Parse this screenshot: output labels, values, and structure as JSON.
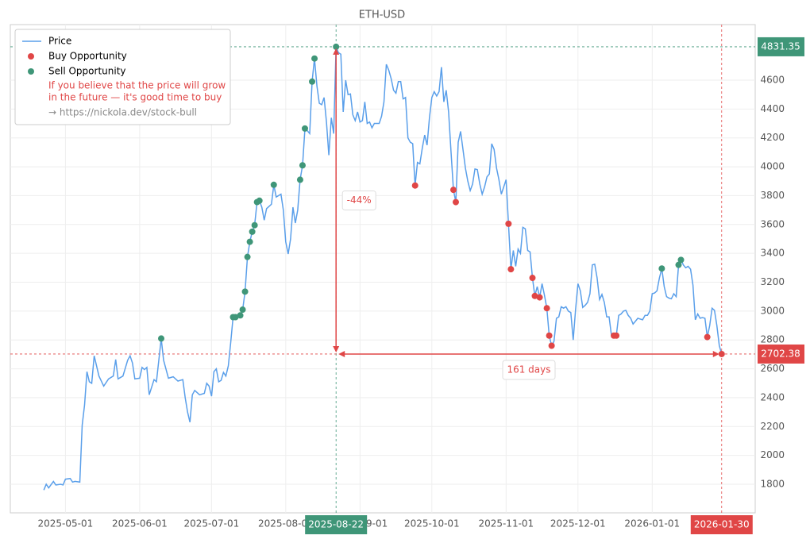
{
  "chart_data": {
    "type": "line",
    "title": "ETH-USD",
    "xlim": [
      "2025-04-08",
      "2026-02-13"
    ],
    "ylim": [
      1602,
      4985
    ],
    "xticks": [
      "2025-05-01",
      "2025-06-01",
      "2025-07-01",
      "2025-08-01",
      "2025-09-01",
      "2025-10-01",
      "2025-11-01",
      "2025-12-01",
      "2026-01-01"
    ],
    "yticks": [
      1800,
      2000,
      2200,
      2400,
      2600,
      2800,
      3000,
      3200,
      3400,
      3600,
      3800,
      4000,
      4200,
      4400,
      4600
    ],
    "grid": true,
    "legend": "upper left",
    "legend_note": [
      "If you believe that the price will grow",
      "in the future — it's good time to buy"
    ],
    "legend_link": "→ https://nickola.dev/stock-bull",
    "max_marker": {
      "x": "2025-08-22",
      "value": 4831.35,
      "color": "#3f9678"
    },
    "last_marker": {
      "x": "2026-01-30",
      "value": 2702.38,
      "color": "#e04646"
    },
    "annotations": {
      "change": "-44%",
      "duration": "161 days"
    },
    "series": [
      {
        "name": "Price",
        "color": "#5a9fea",
        "x": [
          "2025-04-22",
          "2025-04-23",
          "2025-04-24",
          "2025-04-26",
          "2025-04-27",
          "2025-04-29",
          "2025-04-30",
          "2025-05-01",
          "2025-05-03",
          "2025-05-04",
          "2025-05-05",
          "2025-05-07",
          "2025-05-08",
          "2025-05-09",
          "2025-05-10",
          "2025-05-11",
          "2025-05-12",
          "2025-05-13",
          "2025-05-15",
          "2025-05-17",
          "2025-05-19",
          "2025-05-21",
          "2025-05-22",
          "2025-05-23",
          "2025-05-25",
          "2025-05-27",
          "2025-05-28",
          "2025-05-29",
          "2025-05-30",
          "2025-06-01",
          "2025-06-02",
          "2025-06-03",
          "2025-06-04",
          "2025-06-05",
          "2025-06-07",
          "2025-06-08",
          "2025-06-10",
          "2025-06-11",
          "2025-06-13",
          "2025-06-15",
          "2025-06-17",
          "2025-06-19",
          "2025-06-20",
          "2025-06-21",
          "2025-06-22",
          "2025-06-23",
          "2025-06-24",
          "2025-06-26",
          "2025-06-28",
          "2025-06-29",
          "2025-06-30",
          "2025-07-01",
          "2025-07-02",
          "2025-07-03",
          "2025-07-04",
          "2025-07-05",
          "2025-07-06",
          "2025-07-07",
          "2025-07-08",
          "2025-07-09",
          "2025-07-10",
          "2025-07-11",
          "2025-07-12",
          "2025-07-13",
          "2025-07-14",
          "2025-07-15",
          "2025-07-16",
          "2025-07-17",
          "2025-07-18",
          "2025-07-19",
          "2025-07-20",
          "2025-07-21",
          "2025-07-22",
          "2025-07-23",
          "2025-07-24",
          "2025-07-26",
          "2025-07-27",
          "2025-07-28",
          "2025-07-30",
          "2025-07-31",
          "2025-08-01",
          "2025-08-02",
          "2025-08-03",
          "2025-08-04",
          "2025-08-05",
          "2025-08-06",
          "2025-08-07",
          "2025-08-08",
          "2025-08-09",
          "2025-08-10",
          "2025-08-11",
          "2025-08-12",
          "2025-08-13",
          "2025-08-14",
          "2025-08-15",
          "2025-08-16",
          "2025-08-17",
          "2025-08-18",
          "2025-08-19",
          "2025-08-20",
          "2025-08-21",
          "2025-08-22",
          "2025-08-23",
          "2025-08-24",
          "2025-08-25",
          "2025-08-26",
          "2025-08-27",
          "2025-08-28",
          "2025-08-29",
          "2025-08-30",
          "2025-08-31",
          "2025-09-01",
          "2025-09-02",
          "2025-09-03",
          "2025-09-04",
          "2025-09-05",
          "2025-09-06",
          "2025-09-07",
          "2025-09-08",
          "2025-09-09",
          "2025-09-10",
          "2025-09-11",
          "2025-09-12",
          "2025-09-13",
          "2025-09-14",
          "2025-09-15",
          "2025-09-16",
          "2025-09-17",
          "2025-09-18",
          "2025-09-19",
          "2025-09-20",
          "2025-09-21",
          "2025-09-22",
          "2025-09-23",
          "2025-09-24",
          "2025-09-25",
          "2025-09-26",
          "2025-09-27",
          "2025-09-28",
          "2025-09-29",
          "2025-09-30",
          "2025-10-01",
          "2025-10-02",
          "2025-10-03",
          "2025-10-04",
          "2025-10-05",
          "2025-10-06",
          "2025-10-07",
          "2025-10-08",
          "2025-10-09",
          "2025-10-10",
          "2025-10-11",
          "2025-10-12",
          "2025-10-13",
          "2025-10-14",
          "2025-10-15",
          "2025-10-16",
          "2025-10-17",
          "2025-10-18",
          "2025-10-19",
          "2025-10-20",
          "2025-10-21",
          "2025-10-22",
          "2025-10-23",
          "2025-10-24",
          "2025-10-25",
          "2025-10-26",
          "2025-10-27",
          "2025-10-28",
          "2025-10-29",
          "2025-10-30",
          "2025-10-31",
          "2025-11-01",
          "2025-11-02",
          "2025-11-03",
          "2025-11-04",
          "2025-11-05",
          "2025-11-06",
          "2025-11-07",
          "2025-11-08",
          "2025-11-09",
          "2025-11-10",
          "2025-11-11",
          "2025-11-12",
          "2025-11-13",
          "2025-11-14",
          "2025-11-15",
          "2025-11-16",
          "2025-11-17",
          "2025-11-18",
          "2025-11-19",
          "2025-11-20",
          "2025-11-21",
          "2025-11-22",
          "2025-11-23",
          "2025-11-24",
          "2025-11-25",
          "2025-11-26",
          "2025-11-27",
          "2025-11-28",
          "2025-11-29",
          "2025-11-30",
          "2025-12-01",
          "2025-12-02",
          "2025-12-03",
          "2025-12-04",
          "2025-12-05",
          "2025-12-06",
          "2025-12-07",
          "2025-12-08",
          "2025-12-09",
          "2025-12-10",
          "2025-12-11",
          "2025-12-12",
          "2025-12-13",
          "2025-12-14",
          "2025-12-15",
          "2025-12-16",
          "2025-12-17",
          "2025-12-18",
          "2025-12-19",
          "2025-12-20",
          "2025-12-21",
          "2025-12-22",
          "2025-12-23",
          "2025-12-24",
          "2025-12-25",
          "2025-12-26",
          "2025-12-27",
          "2025-12-28",
          "2025-12-29",
          "2025-12-30",
          "2025-12-31",
          "2026-01-01",
          "2026-01-02",
          "2026-01-03",
          "2026-01-04",
          "2026-01-05",
          "2026-01-06",
          "2026-01-07",
          "2026-01-08",
          "2026-01-09",
          "2026-01-10",
          "2026-01-11",
          "2026-01-12",
          "2026-01-13",
          "2026-01-14",
          "2026-01-15",
          "2026-01-16",
          "2026-01-17",
          "2026-01-18",
          "2026-01-19",
          "2026-01-20",
          "2026-01-21",
          "2026-01-22",
          "2026-01-23",
          "2026-01-24",
          "2026-01-25",
          "2026-01-26",
          "2026-01-27",
          "2026-01-28",
          "2026-01-29",
          "2026-01-30"
        ],
        "values": [
          1760,
          1800,
          1775,
          1820,
          1795,
          1800,
          1795,
          1835,
          1840,
          1815,
          1820,
          1815,
          2210,
          2350,
          2580,
          2510,
          2500,
          2690,
          2550,
          2480,
          2530,
          2550,
          2665,
          2530,
          2550,
          2660,
          2690,
          2640,
          2530,
          2535,
          2610,
          2595,
          2610,
          2420,
          2525,
          2510,
          2810,
          2660,
          2535,
          2545,
          2515,
          2525,
          2400,
          2300,
          2230,
          2420,
          2450,
          2420,
          2430,
          2500,
          2480,
          2410,
          2580,
          2600,
          2510,
          2520,
          2575,
          2550,
          2620,
          2780,
          2958,
          2958,
          2965,
          2970,
          3010,
          3135,
          3375,
          3480,
          3550,
          3595,
          3755,
          3765,
          3720,
          3630,
          3710,
          3740,
          3875,
          3790,
          3810,
          3700,
          3480,
          3395,
          3500,
          3720,
          3610,
          3700,
          3910,
          4010,
          4265,
          4250,
          4230,
          4590,
          4750,
          4560,
          4440,
          4430,
          4480,
          4310,
          4080,
          4340,
          4230,
          4831.35,
          4790,
          4780,
          4380,
          4600,
          4500,
          4505,
          4360,
          4320,
          4380,
          4310,
          4320,
          4450,
          4300,
          4310,
          4270,
          4300,
          4300,
          4300,
          4350,
          4450,
          4710,
          4670,
          4610,
          4530,
          4510,
          4590,
          4590,
          4470,
          4480,
          4200,
          4170,
          4160,
          3870,
          4030,
          4020,
          4130,
          4220,
          4150,
          4340,
          4480,
          4520,
          4490,
          4520,
          4690,
          4450,
          4530,
          4380,
          4100,
          3840,
          3755,
          4170,
          4245,
          4120,
          3990,
          3900,
          3835,
          3880,
          3985,
          3980,
          3880,
          3810,
          3860,
          3930,
          3950,
          4160,
          4120,
          3990,
          3910,
          3810,
          3860,
          3910,
          3605,
          3290,
          3420,
          3310,
          3430,
          3400,
          3580,
          3570,
          3420,
          3410,
          3230,
          3105,
          3170,
          3095,
          3190,
          3110,
          3020,
          2830,
          2760,
          2790,
          2950,
          2960,
          3030,
          3020,
          3030,
          3000,
          2990,
          2800,
          3010,
          3190,
          3140,
          3025,
          3040,
          3060,
          3120,
          3320,
          3325,
          3230,
          3080,
          3115,
          3060,
          2960,
          2960,
          2830,
          2830,
          2830,
          2970,
          2980,
          3000,
          3005,
          2970,
          2950,
          2910,
          2930,
          2950,
          2945,
          2940,
          2970,
          2970,
          3000,
          3120,
          3125,
          3140,
          3230,
          3295,
          3170,
          3100,
          3090,
          3085,
          3120,
          3100,
          3320,
          3355,
          3320,
          3300,
          3310,
          3290,
          3180,
          2940,
          2980,
          2950,
          2955,
          2950,
          2820,
          2900,
          3020,
          3005,
          2900,
          2760,
          2702.38
        ]
      },
      {
        "name": "Buy Opportunity",
        "color": "#e04646",
        "x": [
          "2025-09-24",
          "2025-10-10",
          "2025-10-11",
          "2025-11-02",
          "2025-11-03",
          "2025-11-12",
          "2025-11-13",
          "2025-11-15",
          "2025-11-18",
          "2025-11-19",
          "2025-11-20",
          "2025-12-16",
          "2025-12-17",
          "2026-01-24",
          "2026-01-30"
        ],
        "values": [
          3870,
          3840,
          3755,
          3605,
          3290,
          3230,
          3105,
          3095,
          3020,
          2830,
          2760,
          2830,
          2830,
          2820,
          2702.38
        ]
      },
      {
        "name": "Sell Opportunity",
        "color": "#3f9678",
        "x": [
          "2025-06-10",
          "2025-07-10",
          "2025-07-11",
          "2025-07-13",
          "2025-07-14",
          "2025-07-15",
          "2025-07-16",
          "2025-07-17",
          "2025-07-18",
          "2025-07-19",
          "2025-07-20",
          "2025-07-21",
          "2025-07-27",
          "2025-08-07",
          "2025-08-08",
          "2025-08-09",
          "2025-08-12",
          "2025-08-13",
          "2025-08-22",
          "2026-01-05",
          "2026-01-12",
          "2026-01-13"
        ],
        "values": [
          2810,
          2958,
          2958,
          2970,
          3010,
          3135,
          3375,
          3480,
          3550,
          3595,
          3755,
          3765,
          3875,
          3910,
          4010,
          4265,
          4590,
          4750,
          4831.35,
          3295,
          3320,
          3355
        ]
      }
    ]
  }
}
